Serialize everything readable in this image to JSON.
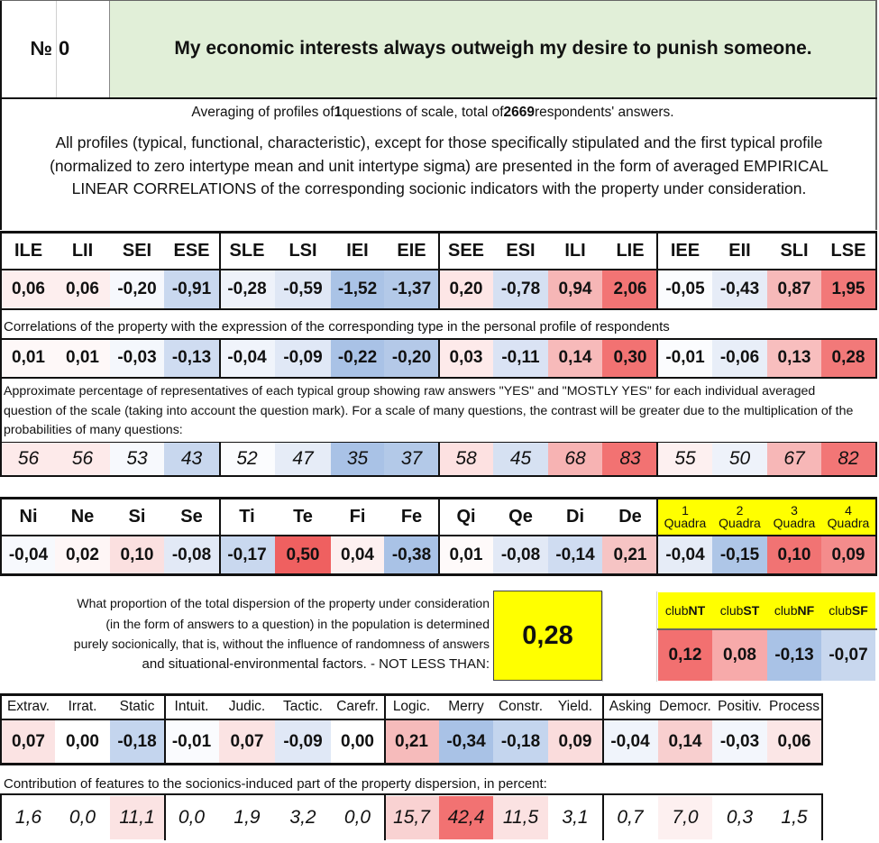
{
  "header": {
    "num_label": "№",
    "num_value": "0",
    "title": "My economic interests always outweigh my desire to punish someone."
  },
  "averaging": {
    "prefix": "Averaging of profiles of ",
    "questions": "1",
    "middle": " questions of scale, total of ",
    "respondents": "2669",
    "suffix": " respondents' answers."
  },
  "intro_text": "All profiles (typical, functional, characteristic), except for those specifically stipulated and the first typical profile (normalized to zero intertype mean and unit intertype sigma) are presented in the form of averaged EMPIRICAL LINEAR CORRELATIONS of the corresponding socionic indicators with the property under consideration.",
  "types": {
    "headers": [
      "ILE",
      "LII",
      "SEI",
      "ESE",
      "SLE",
      "LSI",
      "IEI",
      "EIE",
      "SEE",
      "ESI",
      "ILI",
      "LIE",
      "IEE",
      "EII",
      "SLI",
      "LSE"
    ],
    "values": [
      "0,06",
      "0,06",
      "-0,20",
      "-0,91",
      "-0,28",
      "-0,59",
      "-1,52",
      "-1,37",
      "0,20",
      "-0,78",
      "0,94",
      "2,06",
      "-0,05",
      "-0,43",
      "0,87",
      "1,95"
    ],
    "value_colors": [
      "#fdeeee",
      "#fdeeee",
      "#f6f8fd",
      "#c9d8ef",
      "#eef2fa",
      "#dfe7f5",
      "#aac3e6",
      "#b3c9e8",
      "#fde6e6",
      "#d5e0f2",
      "#f6b6b6",
      "#f27474",
      "#fbfcfe",
      "#e6ecf7",
      "#f6b9b9",
      "#f27878"
    ],
    "corr_caption": "Correlations of the property with the expression of the corresponding type in the personal profile of respondents",
    "corr": [
      "0,01",
      "0,01",
      "-0,03",
      "-0,13",
      "-0,04",
      "-0,09",
      "-0,22",
      "-0,20",
      "0,03",
      "-0,11",
      "0,14",
      "0,30",
      "-0,01",
      "-0,06",
      "0,13",
      "0,28"
    ],
    "corr_colors": [
      "#fef8f8",
      "#fef8f8",
      "#f4f7fc",
      "#cfdcf1",
      "#f0f4fb",
      "#e0e8f6",
      "#a9c2e6",
      "#b4c9e8",
      "#fdeaea",
      "#dae3f4",
      "#f7baba",
      "#f27272",
      "#fbfcfe",
      "#e8eef8",
      "#f8bebe",
      "#f27979"
    ],
    "pct_caption": "Approximate percentage of representatives of each typical group showing raw answers \"YES\" and \"MOSTLY YES\" for each individual averaged question of the scale (taking into account the question mark). For a scale of many questions, the contrast will be greater due to the multiplication of the probabilities of many questions:",
    "pct": [
      "56",
      "56",
      "53",
      "43",
      "52",
      "47",
      "35",
      "37",
      "58",
      "45",
      "68",
      "83",
      "55",
      "50",
      "67",
      "82"
    ],
    "pct_colors": [
      "#fdeaea",
      "#fdeaea",
      "#f7f9fd",
      "#c8d7ee",
      "#fbfcfe",
      "#e6ecf7",
      "#a9c2e6",
      "#b3c9e8",
      "#fde1e1",
      "#d6e1f2",
      "#f7b3b3",
      "#f27272",
      "#fdf0f0",
      "#eef2fa",
      "#f7b7b7",
      "#f27676"
    ]
  },
  "functions": {
    "headers": [
      "Ni",
      "Ne",
      "Si",
      "Se",
      "Ti",
      "Te",
      "Fi",
      "Fe",
      "Qi",
      "Qe",
      "Di",
      "De"
    ],
    "values": [
      "-0,04",
      "0,02",
      "0,10",
      "-0,08",
      "-0,17",
      "0,50",
      "0,04",
      "-0,38",
      "0,01",
      "-0,08",
      "-0,14",
      "0,21"
    ],
    "colors": [
      "#f7f9fd",
      "#fef6f6",
      "#fbe0e0",
      "#e2e9f6",
      "#c9d8ef",
      "#ef6060",
      "#fdf0f0",
      "#a9c2e6",
      "#fefafa",
      "#e2e9f6",
      "#cfdcf1",
      "#f6c4c4"
    ]
  },
  "quadras": {
    "nums": [
      "1",
      "2",
      "3",
      "4"
    ],
    "word": "Quadra",
    "values": [
      "-0,04",
      "-0,15",
      "0,10",
      "0,09"
    ],
    "colors": [
      "#e6ecf7",
      "#aec6e7",
      "#f17373",
      "#f48c8c"
    ],
    "header_bg": "#ffff00"
  },
  "dispersion": {
    "lines": [
      "What proportion of the total dispersion of the property under consideration",
      "(in the form of answers to a question) in the population is determined",
      "purely socionically, that is, without the influence of randomness of answers",
      "and situational-environmental factors. - NOT LESS THAN:"
    ],
    "value": "0,28",
    "value_bg": "#ffff00"
  },
  "clubs": {
    "prefix": "club",
    "names": [
      "NT",
      "ST",
      "NF",
      "SF"
    ],
    "values": [
      "0,12",
      "0,08",
      "-0,13",
      "-0,07"
    ],
    "colors": [
      "#f27070",
      "#f7aaaa",
      "#a9c2e6",
      "#c8d7ee"
    ],
    "header_bg": "#ffff00"
  },
  "traits": {
    "headers": [
      "Extrav.",
      "Irrat.",
      "Static",
      "Intuit.",
      "Judic.",
      "Tactic.",
      "Carefr.",
      "Logic.",
      "Merry",
      "Constr.",
      "Yield.",
      "Asking",
      "Democr.",
      "Positiv.",
      "Process"
    ],
    "values": [
      "0,07",
      "0,00",
      "-0,18",
      "-0,01",
      "0,07",
      "-0,09",
      "0,00",
      "0,21",
      "-0,34",
      "-0,18",
      "0,09",
      "-0,04",
      "0,14",
      "-0,03",
      "0,06"
    ],
    "colors": [
      "#fbe3e3",
      "#ffffff",
      "#c4d5ee",
      "#fafbfe",
      "#fbe3e3",
      "#e0e8f6",
      "#ffffff",
      "#f6bbbb",
      "#a9c2e6",
      "#c4d5ee",
      "#fadcdc",
      "#f0f4fb",
      "#f8cfcf",
      "#f3f6fc",
      "#fbe6e6"
    ],
    "contrib_caption": "Contribution of features to the sociоnics-induced part of the property dispersion, in percent:",
    "contrib": [
      "1,6",
      "0,0",
      "11,1",
      "0,0",
      "1,9",
      "3,2",
      "0,0",
      "15,7",
      "42,4",
      "11,5",
      "3,1",
      "0,7",
      "7,0",
      "0,3",
      "1,5"
    ],
    "contrib_colors": [
      "#ffffff",
      "#ffffff",
      "#fbe3e3",
      "#ffffff",
      "#ffffff",
      "#ffffff",
      "#ffffff",
      "#f9d2d2",
      "#f27272",
      "#fbe2e2",
      "#ffffff",
      "#ffffff",
      "#fdf0f0",
      "#ffffff",
      "#ffffff"
    ]
  }
}
